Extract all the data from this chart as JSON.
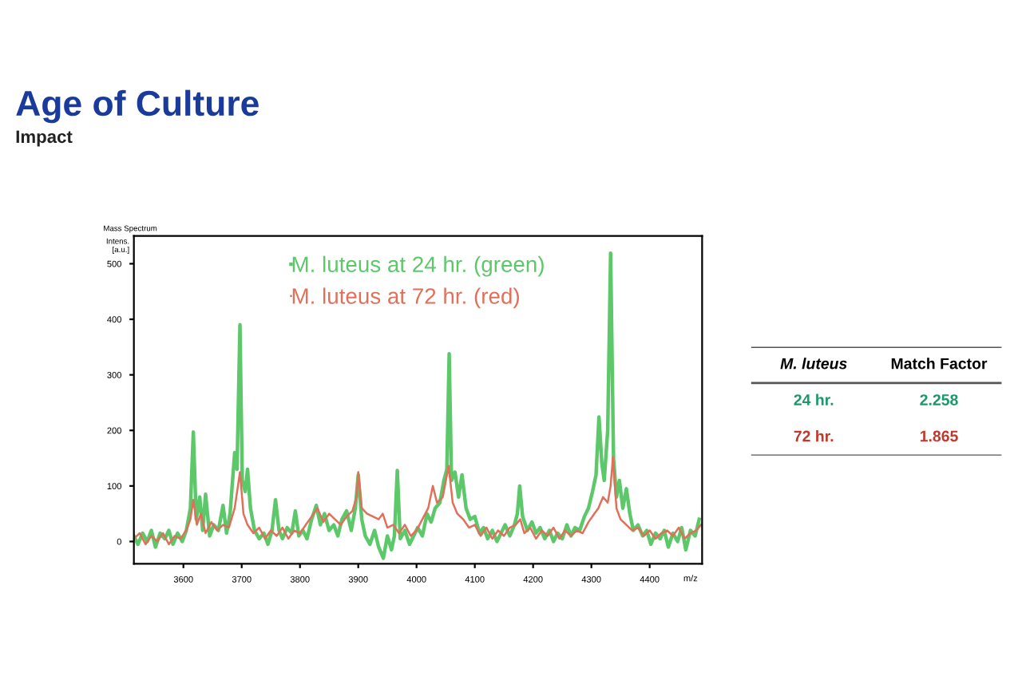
{
  "chart_data": [
    {
      "type": "line",
      "title": "Age of Culture",
      "subtitle": "Impact",
      "xlabel": "m/z",
      "ylabel": "Intens.\n[a.u.]",
      "annotations": [
        "Mass Spectrum"
      ],
      "xlim": [
        3515,
        4490
      ],
      "ylim": [
        -40,
        550
      ],
      "xticks": [
        3600,
        3700,
        3800,
        3900,
        4000,
        4100,
        4200,
        4300,
        4400
      ],
      "yticks": [
        0,
        100,
        200,
        300,
        400,
        500
      ],
      "legend": "top",
      "grid": false,
      "marker": "none",
      "line_style": "solid",
      "series": [
        {
          "name": "M. luteus at 24 hr. (green)",
          "color": "#5cc86a",
          "x": [
            3515,
            3522,
            3530,
            3538,
            3545,
            3552,
            3560,
            3568,
            3575,
            3582,
            3590,
            3598,
            3605,
            3612,
            3617,
            3622,
            3628,
            3633,
            3638,
            3645,
            3652,
            3660,
            3668,
            3674,
            3680,
            3688,
            3692,
            3697,
            3701,
            3706,
            3710,
            3715,
            3722,
            3730,
            3738,
            3745,
            3752,
            3758,
            3764,
            3770,
            3778,
            3786,
            3792,
            3798,
            3805,
            3812,
            3820,
            3828,
            3835,
            3842,
            3850,
            3858,
            3865,
            3872,
            3880,
            3888,
            3895,
            3900,
            3906,
            3912,
            3920,
            3928,
            3935,
            3943,
            3950,
            3957,
            3962,
            3967,
            3972,
            3980,
            3988,
            3995,
            4002,
            4010,
            4018,
            4025,
            4032,
            4040,
            4047,
            4052,
            4056,
            4060,
            4066,
            4072,
            4078,
            4085,
            4092,
            4100,
            4108,
            4115,
            4122,
            4130,
            4138,
            4145,
            4152,
            4160,
            4168,
            4173,
            4177,
            4182,
            4190,
            4198,
            4205,
            4212,
            4220,
            4228,
            4235,
            4242,
            4250,
            4258,
            4265,
            4272,
            4280,
            4288,
            4295,
            4302,
            4308,
            4313,
            4318,
            4322,
            4328,
            4333,
            4338,
            4343,
            4348,
            4354,
            4360,
            4366,
            4372,
            4380,
            4388,
            4395,
            4402,
            4410,
            4418,
            4425,
            4432,
            4440,
            4448,
            4455,
            4462,
            4470,
            4478,
            4485
          ],
          "values": [
            10,
            -5,
            15,
            0,
            20,
            -10,
            15,
            5,
            20,
            -5,
            15,
            0,
            20,
            60,
            197,
            40,
            80,
            20,
            85,
            10,
            30,
            20,
            65,
            15,
            50,
            160,
            130,
            390,
            110,
            90,
            130,
            60,
            20,
            5,
            15,
            -5,
            20,
            75,
            20,
            5,
            25,
            15,
            55,
            10,
            20,
            5,
            40,
            65,
            30,
            50,
            20,
            30,
            10,
            40,
            55,
            20,
            60,
            120,
            40,
            10,
            -5,
            20,
            -10,
            -30,
            10,
            -15,
            10,
            128,
            5,
            20,
            -5,
            10,
            25,
            10,
            50,
            35,
            60,
            70,
            110,
            130,
            338,
            110,
            125,
            80,
            120,
            60,
            40,
            45,
            15,
            25,
            5,
            20,
            0,
            15,
            30,
            10,
            30,
            50,
            100,
            45,
            20,
            35,
            15,
            25,
            5,
            20,
            0,
            15,
            5,
            30,
            10,
            25,
            20,
            45,
            60,
            90,
            120,
            224,
            140,
            110,
            200,
            519,
            150,
            80,
            110,
            60,
            95,
            50,
            20,
            30,
            10,
            20,
            -5,
            15,
            5,
            20,
            -10,
            15,
            0,
            25,
            -15,
            20,
            10,
            40
          ]
        },
        {
          "name": "M. luteus at 72 hr. (red)",
          "color": "#e0705a",
          "x": [
            3515,
            3525,
            3535,
            3545,
            3555,
            3565,
            3575,
            3585,
            3595,
            3605,
            3612,
            3617,
            3623,
            3630,
            3638,
            3648,
            3658,
            3668,
            3678,
            3688,
            3697,
            3703,
            3710,
            3720,
            3730,
            3740,
            3750,
            3760,
            3770,
            3780,
            3790,
            3800,
            3810,
            3820,
            3830,
            3840,
            3850,
            3860,
            3870,
            3880,
            3890,
            3897,
            3900,
            3906,
            3915,
            3925,
            3935,
            3942,
            3950,
            3960,
            3970,
            3980,
            3990,
            4000,
            4010,
            4020,
            4028,
            4035,
            4045,
            4055,
            4062,
            4070,
            4080,
            4090,
            4100,
            4110,
            4120,
            4130,
            4140,
            4150,
            4160,
            4170,
            4178,
            4185,
            4195,
            4205,
            4215,
            4225,
            4235,
            4245,
            4255,
            4265,
            4275,
            4285,
            4295,
            4305,
            4312,
            4320,
            4328,
            4333,
            4337,
            4343,
            4350,
            4360,
            4370,
            4380,
            4390,
            4400,
            4410,
            4420,
            4430,
            4440,
            4450,
            4460,
            4470,
            4480,
            4488
          ],
          "values": [
            5,
            15,
            -5,
            10,
            0,
            15,
            -5,
            10,
            5,
            20,
            40,
            75,
            30,
            50,
            15,
            35,
            20,
            30,
            25,
            60,
            125,
            50,
            30,
            15,
            25,
            5,
            20,
            10,
            25,
            5,
            20,
            15,
            30,
            45,
            60,
            35,
            50,
            40,
            30,
            45,
            55,
            80,
            125,
            60,
            50,
            45,
            40,
            50,
            25,
            30,
            15,
            30,
            10,
            20,
            40,
            60,
            100,
            70,
            80,
            136,
            70,
            50,
            40,
            25,
            30,
            10,
            25,
            5,
            20,
            10,
            25,
            30,
            40,
            15,
            25,
            5,
            20,
            10,
            25,
            5,
            20,
            10,
            20,
            15,
            35,
            50,
            60,
            80,
            70,
            100,
            152,
            60,
            40,
            30,
            20,
            25,
            10,
            20,
            5,
            15,
            20,
            10,
            25,
            5,
            15,
            20,
            30
          ]
        }
      ]
    },
    {
      "type": "other",
      "annotations": [
        "M. luteus",
        "Match Factor"
      ],
      "categories": [
        "24 hr.",
        "72 hr."
      ],
      "values": [
        2.258,
        1.865
      ],
      "colors": [
        "#1a9a6a",
        "#c0392b"
      ],
      "data_labels": true
    }
  ]
}
